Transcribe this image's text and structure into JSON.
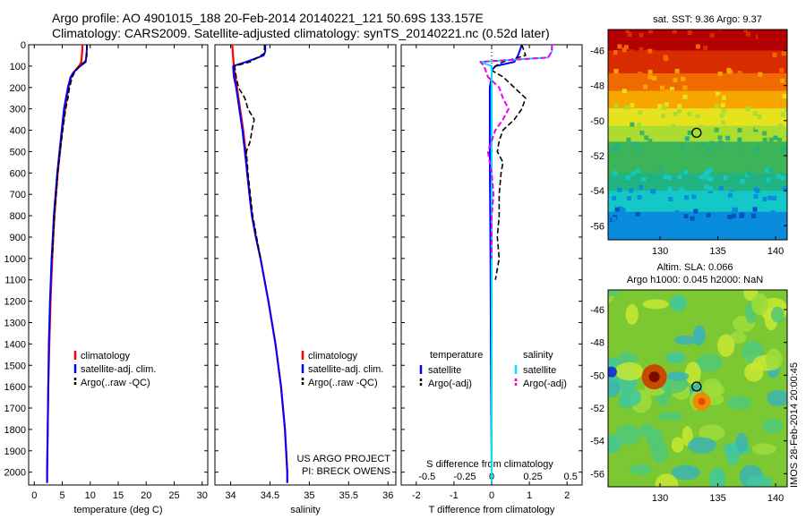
{
  "header": {
    "line1": "Argo profile: AO 4901015_188 20-Feb-2014 20140221_121 50.69S 133.157E",
    "line2": "Climatology: CARS2009. Satellite-adjusted climatology: synTS_20140221.nc (0.52d later)"
  },
  "colors": {
    "climatology": "#ff0000",
    "satellite": "#0000ff",
    "argo": "#000000",
    "salinity_satellite": "#00e5ee",
    "salinity_argo": "#ee00ee"
  },
  "chart_data": [
    {
      "type": "line",
      "id": "temperature",
      "xlabel": "temperature (deg C)",
      "xlim": [
        -1,
        31
      ],
      "xticks": [
        0,
        5,
        10,
        15,
        20,
        25,
        30
      ],
      "ylim": [
        0,
        2060
      ],
      "yticks": [
        0,
        100,
        200,
        300,
        400,
        500,
        600,
        700,
        800,
        900,
        1000,
        1100,
        1200,
        1300,
        1400,
        1500,
        1600,
        1700,
        1800,
        1900,
        2000
      ],
      "legend": [
        "climatology",
        "satellite-adj. clim.",
        "Argo(..raw -QC)"
      ],
      "series": [
        {
          "name": "climatology",
          "style": "climatology",
          "depth": [
            0,
            20,
            50,
            80,
            100,
            130,
            150,
            200,
            300,
            400,
            500,
            600,
            700,
            800,
            900,
            1000,
            1200,
            1400,
            1600,
            1800,
            2000,
            2050
          ],
          "values": [
            8.6,
            8.6,
            8.5,
            8.4,
            8.0,
            7.0,
            6.6,
            6.1,
            5.5,
            5.0,
            4.6,
            4.2,
            3.9,
            3.6,
            3.4,
            3.2,
            2.9,
            2.7,
            2.5,
            2.4,
            2.3,
            2.3
          ]
        },
        {
          "name": "satellite-adj. clim.",
          "style": "satellite",
          "depth": [
            0,
            20,
            50,
            80,
            100,
            130,
            150,
            200,
            300,
            400,
            500,
            600,
            700,
            800,
            900,
            1000,
            1200,
            1400,
            1600,
            1800,
            2000,
            2050
          ],
          "values": [
            9.4,
            9.4,
            9.3,
            9.2,
            8.2,
            7.0,
            6.5,
            6.0,
            5.3,
            4.9,
            4.5,
            4.1,
            3.8,
            3.5,
            3.3,
            3.1,
            2.8,
            2.6,
            2.5,
            2.4,
            2.3,
            2.3
          ]
        },
        {
          "name": "Argo(..raw -QC)",
          "style": "argo",
          "depth": [
            0,
            20,
            50,
            80,
            100,
            130,
            150,
            200,
            250,
            300,
            400,
            500,
            600,
            700,
            800,
            900,
            1000
          ],
          "values": [
            9.4,
            9.4,
            9.4,
            9.0,
            8.0,
            7.2,
            6.8,
            6.3,
            6.0,
            5.6,
            5.1,
            4.6,
            4.2,
            3.9,
            3.6,
            3.4,
            3.2
          ]
        }
      ]
    },
    {
      "type": "line",
      "id": "salinity",
      "xlabel": "salinity",
      "xlim": [
        33.8,
        36.1
      ],
      "xticks": [
        34,
        34.5,
        35,
        35.5,
        36
      ],
      "ylim": [
        0,
        2060
      ],
      "legend": [
        "climatology",
        "satellite-adj. clim.",
        "Argo(..raw -QC)"
      ],
      "annotations": [
        "US ARGO PROJECT",
        "PI: BRECK OWENS"
      ],
      "series": [
        {
          "name": "climatology",
          "style": "climatology",
          "depth": [
            0,
            50,
            100,
            150,
            200,
            300,
            400,
            500,
            600,
            700,
            800,
            900,
            1000,
            1200,
            1400,
            1600,
            1800,
            2000,
            2050
          ],
          "values": [
            34.02,
            34.03,
            34.04,
            34.06,
            34.08,
            34.12,
            34.16,
            34.19,
            34.21,
            34.24,
            34.27,
            34.32,
            34.38,
            34.48,
            34.57,
            34.64,
            34.69,
            34.72,
            34.72
          ]
        },
        {
          "name": "satellite-adj. clim.",
          "style": "satellite",
          "depth": [
            0,
            30,
            50,
            80,
            100,
            150,
            200,
            300,
            400,
            500,
            600,
            700,
            800,
            900,
            1000,
            1200,
            1400,
            1600,
            1800,
            2000,
            2050
          ],
          "values": [
            34.44,
            34.44,
            34.42,
            34.2,
            34.03,
            34.04,
            34.07,
            34.11,
            34.15,
            34.18,
            34.21,
            34.24,
            34.27,
            34.32,
            34.38,
            34.48,
            34.57,
            34.64,
            34.69,
            34.72,
            34.72
          ]
        },
        {
          "name": "Argo(..raw -QC)",
          "style": "argo",
          "depth": [
            0,
            40,
            80,
            100,
            150,
            200,
            250,
            300,
            350,
            400,
            450,
            500,
            600,
            700,
            800,
            900,
            1000
          ],
          "values": [
            34.43,
            34.43,
            34.25,
            34.05,
            34.07,
            34.1,
            34.18,
            34.22,
            34.3,
            34.27,
            34.25,
            34.2,
            34.22,
            34.25,
            34.28,
            34.33,
            34.38
          ]
        }
      ]
    },
    {
      "type": "line",
      "id": "difference",
      "xlabel": "T difference from climatology",
      "xlabel_top": "S difference from climatology",
      "xlim": [
        -2.4,
        2.4
      ],
      "xticks": [
        -2,
        -1,
        0,
        1,
        2
      ],
      "s_ticks": [
        "-0.5",
        "-0.25",
        "0",
        "0.25",
        "0.5"
      ],
      "ylim": [
        0,
        2060
      ],
      "legend_headers": [
        "temperature",
        "salinity"
      ],
      "legend": [
        "satellite",
        "Argo(-adj)",
        "satellite",
        "Argo(-adj)"
      ],
      "series": [
        {
          "name": "satellite",
          "quantity": "temperature",
          "style": "satellite",
          "depth": [
            0,
            50,
            80,
            100,
            120,
            150,
            200,
            300,
            500,
            1000,
            1500,
            2000,
            2050
          ],
          "values": [
            0.8,
            0.7,
            0.6,
            0.1,
            0.0,
            0.0,
            -0.05,
            -0.05,
            -0.05,
            -0.03,
            -0.02,
            0.0,
            0.0
          ]
        },
        {
          "name": "Argo(-adj)",
          "quantity": "temperature",
          "style": "argo",
          "depth": [
            0,
            50,
            80,
            100,
            120,
            150,
            200,
            250,
            300,
            350,
            400,
            450,
            500,
            550,
            600,
            700,
            800,
            900,
            1000,
            1100
          ],
          "values": [
            0.8,
            0.9,
            0.3,
            0.1,
            0.0,
            0.3,
            0.6,
            0.9,
            0.8,
            0.6,
            0.3,
            0.2,
            0.15,
            0.3,
            0.25,
            0.2,
            0.2,
            0.15,
            0.2,
            0.1
          ]
        },
        {
          "name": "satellite",
          "quantity": "salinity",
          "style": "salinity_satellite",
          "depth": [
            0,
            30,
            60,
            80,
            100,
            150,
            200,
            300,
            500,
            1000,
            1500,
            2000,
            2050
          ],
          "values": [
            1.6,
            1.6,
            1.5,
            -0.3,
            0.0,
            0.0,
            0.0,
            0.0,
            0.0,
            0.0,
            0.0,
            0.0,
            0.0
          ]
        },
        {
          "name": "Argo(-adj)",
          "quantity": "salinity",
          "style": "salinity_argo",
          "depth": [
            0,
            30,
            60,
            80,
            100,
            150,
            200,
            250,
            300,
            350,
            400,
            450,
            500,
            600,
            700,
            800,
            900,
            1000
          ],
          "values": [
            1.6,
            1.6,
            1.5,
            -0.3,
            -0.2,
            -0.1,
            0.2,
            0.3,
            0.45,
            0.3,
            0.1,
            0.0,
            -0.1,
            0.0,
            0.05,
            0.0,
            0.0,
            0.0
          ]
        }
      ]
    }
  ],
  "maps": [
    {
      "title": "sat. SST: 9.36 Argo: 9.37",
      "xticks": [
        130,
        135,
        140
      ],
      "yticks": [
        -46,
        -48,
        -50,
        -52,
        -54,
        -56
      ],
      "xlim": [
        125.5,
        141
      ],
      "ylim": [
        -56.8,
        -44.8
      ],
      "marker": {
        "lon": 133.157,
        "lat": -50.69
      },
      "bands": [
        {
          "lat": -44.8,
          "color": "#b40000"
        },
        {
          "lat": -46.0,
          "color": "#d92b00"
        },
        {
          "lat": -47.3,
          "color": "#f06a00"
        },
        {
          "lat": -48.3,
          "color": "#f7a600"
        },
        {
          "lat": -49.3,
          "color": "#e6e21e"
        },
        {
          "lat": -50.3,
          "color": "#aadc32"
        },
        {
          "lat": -51.2,
          "color": "#3cb45a"
        },
        {
          "lat": -53.0,
          "color": "#21b482"
        },
        {
          "lat": -54.0,
          "color": "#14c8c8"
        },
        {
          "lat": -55.2,
          "color": "#0a8cdc"
        },
        {
          "lat": -56.8,
          "color": "#0050c8"
        }
      ]
    },
    {
      "title_line1": "Altim. SLA: 0.066",
      "title_line2": "Argo h1000: 0.045 h2000: NaN",
      "xticks": [
        130,
        135,
        140
      ],
      "yticks": [
        -46,
        -48,
        -50,
        -52,
        -54,
        -56
      ],
      "xlim": [
        125.5,
        141
      ],
      "ylim": [
        -56.8,
        -44.8
      ],
      "marker": {
        "lon": 133.157,
        "lat": -50.69
      },
      "background": "#7cc832"
    }
  ],
  "side_label": "IMOS 28-Feb-2014 20:00:45"
}
